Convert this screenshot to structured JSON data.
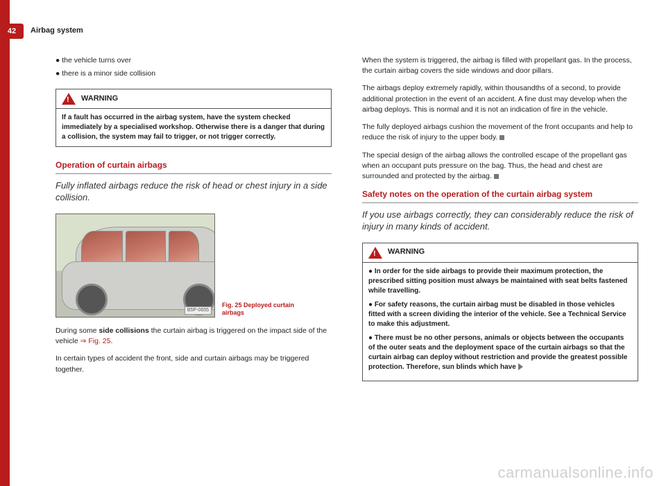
{
  "page": {
    "number": "42",
    "header": "Airbag system"
  },
  "left": {
    "bullets": [
      "the vehicle turns over",
      "there is a minor side collision"
    ],
    "warning": {
      "title": "WARNING",
      "body": "If a fault has occurred in the airbag system, have the system checked immediately by a specialised workshop. Otherwise there is a danger that during a collision, the system may fail to trigger, or not trigger correctly."
    },
    "section_title": "Operation of curtain airbags",
    "section_sub": "Fully inflated airbags reduce the risk of head or chest injury in a side collision.",
    "figure": {
      "tag": "B5P-0655",
      "caption": "Fig. 25  Deployed curtain airbags"
    },
    "p1a": "During some ",
    "p1b": "side collisions",
    "p1c": " the curtain airbag is triggered on the impact side of the vehicle ",
    "p1link": "⇒ Fig. 25",
    "p2": "In certain types of accident the front, side and curtain airbags may be triggered together."
  },
  "right": {
    "p1": "When the system is triggered, the airbag is filled with propellant gas. In the process, the curtain airbag covers the side windows and door pillars.",
    "p2": "The airbags deploy extremely rapidly, within thousandths of a second, to provide additional protection in the event of an accident. A fine dust may develop when the airbag deploys. This is normal and it is not an indication of fire in the vehicle.",
    "p3": "The fully deployed airbags cushion the movement of the front occupants and help to reduce the risk of injury to the upper body.",
    "p4": "The special design of the airbag allows the controlled escape of the propellant gas when an occupant puts pressure on the bag. Thus, the head and chest are surrounded and protected by the airbag.",
    "section_title": "Safety notes on the operation of the curtain airbag system",
    "section_sub": "If you use airbags correctly, they can considerably reduce the risk of injury in many kinds of accident.",
    "warning": {
      "title": "WARNING",
      "items": [
        "In order for the side airbags to provide their maximum protection, the prescribed sitting position must always be maintained with seat belts fastened while travelling.",
        "For safety reasons, the curtain airbag must be disabled in those vehicles fitted with a screen dividing the interior of the vehicle. See a Technical Service to make this adjustment.",
        "There must be no other persons, animals or objects between the occupants of the outer seats and the deployment space of the curtain airbags so that the curtain airbag can deploy without restriction and provide the greatest possible protection. Therefore, sun blinds which have"
      ]
    }
  },
  "watermark": "carmanualsonline.info"
}
